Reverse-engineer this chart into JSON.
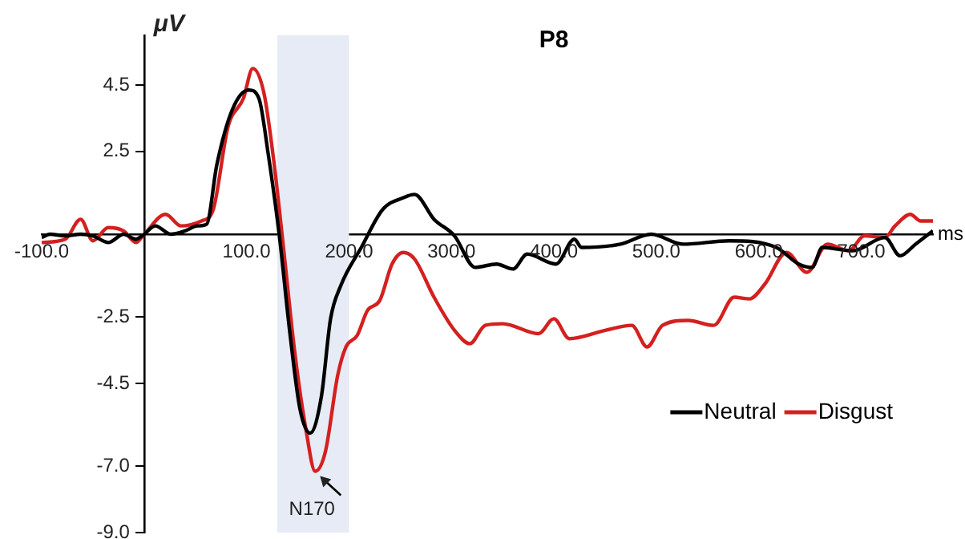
{
  "chart_data": {
    "type": "line",
    "title": "P8",
    "xlabel": "ms",
    "ylabel": "μV",
    "xlim": [
      -100,
      770
    ],
    "ylim": [
      -9,
      6
    ],
    "xticks": [
      {
        "value": -100,
        "label": "-100.0"
      },
      {
        "value": 100,
        "label": "100.0"
      },
      {
        "value": 200,
        "label": "200.0"
      },
      {
        "value": 300,
        "label": "300.0"
      },
      {
        "value": 400,
        "label": "400.0"
      },
      {
        "value": 500,
        "label": "500.0"
      },
      {
        "value": 600,
        "label": "600.0"
      },
      {
        "value": 700,
        "label": "700.0"
      }
    ],
    "yticks": [
      {
        "value": -9,
        "label": "-9.0"
      },
      {
        "value": -7,
        "label": "-7.0"
      },
      -4.5,
      -2.5,
      2.5,
      4.5
    ],
    "grid": false,
    "legend": "bottom right",
    "marker": "none",
    "line_style": "solid",
    "bands": [
      {
        "axis": "x",
        "from": 130,
        "to": 200,
        "color": "#e6ebf5"
      }
    ],
    "annotations": [
      {
        "text": "N170",
        "x": 167,
        "y": -7.15
      }
    ],
    "series": [
      {
        "name": "Neutral",
        "color": "#000000",
        "x": [
          -100,
          -92,
          -77,
          -62,
          -50,
          -35,
          -20,
          -8,
          0,
          11,
          26,
          40,
          52,
          61,
          71,
          86,
          102,
          112,
          121,
          132,
          142,
          152,
          162,
          173,
          182,
          192,
          212,
          233,
          253,
          264,
          283,
          303,
          323,
          344,
          360,
          374,
          402,
          420,
          427,
          465,
          495,
          526,
          571,
          617,
          639,
          652,
          662,
          692,
          723,
          738,
          753,
          770
        ],
        "values": [
          -0.1,
          0,
          -0.05,
          0,
          -0.05,
          -0.25,
          0,
          -0.15,
          0,
          0.25,
          0,
          0.1,
          0.25,
          0.3,
          2.1,
          3.75,
          4.35,
          4.1,
          2.45,
          -0.05,
          -2.9,
          -5.25,
          -6.0,
          -4.9,
          -2.55,
          -1.55,
          -0.4,
          0.75,
          1.1,
          1.2,
          0.45,
          -0.05,
          -1.0,
          -0.9,
          -1.05,
          -0.6,
          -0.9,
          -0.15,
          -0.4,
          -0.3,
          0.0,
          -0.3,
          -0.2,
          -0.4,
          -0.9,
          -1.0,
          -0.4,
          -0.5,
          -0.1,
          -0.65,
          -0.3,
          0.1
        ]
      },
      {
        "name": "Disgust",
        "color": "#d42020",
        "x": [
          -100,
          -77,
          -62,
          -50,
          -35,
          -20,
          -8,
          0,
          21,
          36,
          56,
          67,
          82,
          97,
          106,
          117,
          127,
          136,
          147,
          158,
          167,
          177,
          189,
          197,
          208,
          218,
          230,
          242,
          253,
          264,
          283,
          303,
          318,
          333,
          350,
          385,
          400,
          415,
          450,
          476,
          491,
          506,
          531,
          556,
          576,
          591,
          606,
          627,
          647,
          667,
          688,
          703,
          723,
          733,
          748,
          758,
          770
        ],
        "values": [
          -0.25,
          -0.15,
          0.45,
          -0.2,
          0.2,
          0.1,
          -0.25,
          0,
          0.6,
          0.25,
          0.4,
          0.7,
          3.25,
          4.1,
          5.0,
          4.25,
          2.1,
          -0.4,
          -3.55,
          -5.9,
          -7.15,
          -6.55,
          -4.25,
          -3.4,
          -3.05,
          -2.3,
          -2.0,
          -0.9,
          -0.55,
          -0.75,
          -1.9,
          -2.9,
          -3.3,
          -2.75,
          -2.7,
          -3.0,
          -2.55,
          -3.15,
          -2.9,
          -2.75,
          -3.4,
          -2.75,
          -2.6,
          -2.75,
          -1.9,
          -1.95,
          -1.5,
          -0.55,
          -1.15,
          -0.3,
          -0.5,
          -0.05,
          -0.1,
          0.25,
          0.6,
          0.4,
          0.4
        ]
      }
    ]
  }
}
